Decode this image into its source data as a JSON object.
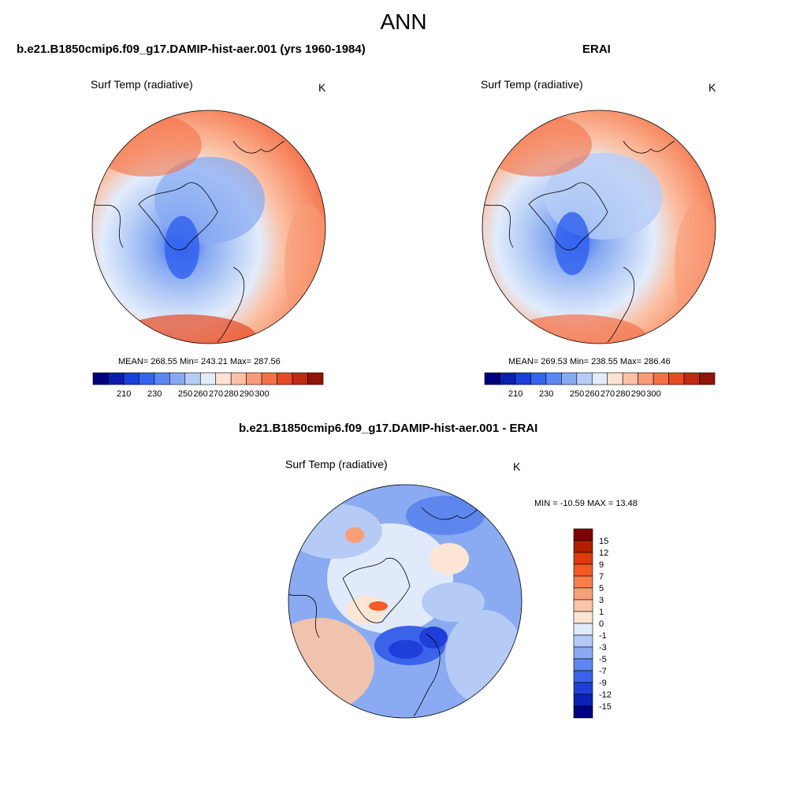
{
  "title": "ANN",
  "panels": [
    {
      "id": "model",
      "title": "b.e21.B1850cmip6.f09_g17.DAMIP-hist-aer.001 (yrs 1960-1984)",
      "var_label": "Surf Temp (radiative)",
      "units": "K",
      "stats": "MEAN= 268.55  Min= 243.21  Max= 287.56"
    },
    {
      "id": "obs",
      "title": "ERAI",
      "var_label": "Surf Temp (radiative)",
      "units": "K",
      "stats": "MEAN= 269.53  Min= 238.55  Max= 286.46"
    },
    {
      "id": "diff",
      "title": "b.e21.B1850cmip6.f09_g17.DAMIP-hist-aer.001 - ERAI",
      "var_label": "Surf Temp (radiative)",
      "units": "K",
      "stats": "MIN = -10.59 MAX =  13.48"
    }
  ],
  "abs_colorbar": {
    "tick_labels": [
      "210",
      "230",
      "250",
      "260",
      "270",
      "280",
      "290",
      "300"
    ],
    "colors": [
      "#00007f",
      "#0a1fb0",
      "#1a3fd8",
      "#3464ef",
      "#5a87f2",
      "#86a9f2",
      "#b6cdf6",
      "#e2ecfb",
      "#fde3d3",
      "#fbc1a5",
      "#f89b77",
      "#f47148",
      "#e44a23",
      "#c02a11",
      "#8f1506"
    ]
  },
  "diff_colorbar": {
    "tick_labels": [
      "15",
      "12",
      "9",
      "7",
      "5",
      "3",
      "1",
      "0",
      "-1",
      "-3",
      "-5",
      "-7",
      "-9",
      "-12",
      "-15"
    ],
    "colors": [
      "#7f0000",
      "#b21e00",
      "#de3a0d",
      "#f45a25",
      "#f77d4a",
      "#f99f77",
      "#fbc5a7",
      "#fde5d5",
      "#e0eafb",
      "#b5cbf5",
      "#8aabf1",
      "#5e87ee",
      "#3a63ea",
      "#1f3fdb",
      "#0d20b6",
      "#00007f"
    ]
  }
}
